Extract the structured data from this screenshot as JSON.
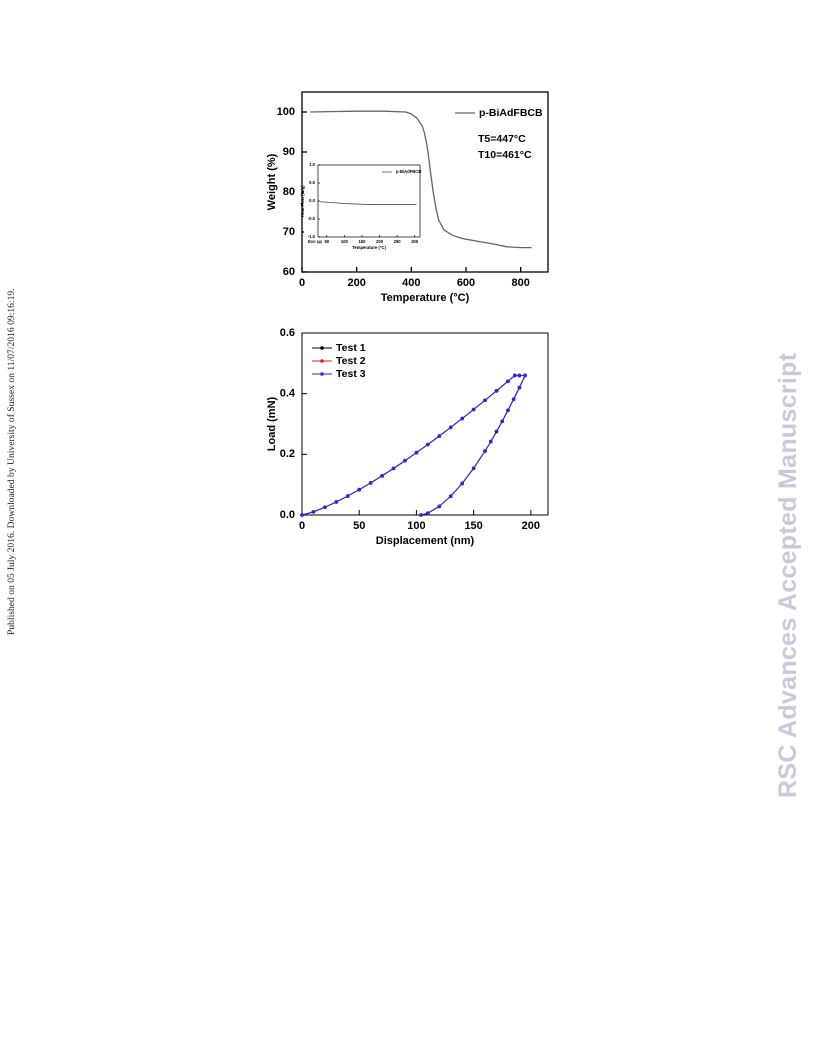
{
  "side_note": "Published on 05 July 2016. Downloaded by University of Sussex on 11/07/2016 09:16:19.",
  "watermark": "RSC Advances Accepted Manuscript",
  "chart_data": [
    {
      "type": "line",
      "xlabel": "Temperature (°C)",
      "ylabel": "Weight (%)",
      "xlim": [
        0,
        900
      ],
      "ylim": [
        60,
        105
      ],
      "xticks": [
        0,
        200,
        400,
        600,
        800
      ],
      "yticks": [
        60,
        70,
        80,
        90,
        100
      ],
      "annotations": [
        "T5=447°C",
        "T10=461°C"
      ],
      "x": [
        30,
        100,
        200,
        300,
        380,
        400,
        420,
        440,
        447,
        455,
        461,
        470,
        480,
        490,
        500,
        520,
        550,
        580,
        600,
        650,
        700,
        750,
        800,
        840
      ],
      "series": [
        {
          "name": "p-BiAdFBCB",
          "color": "#666666",
          "values": [
            100,
            100.1,
            100.2,
            100.2,
            100,
            99.5,
            98.5,
            96.5,
            95,
            92.5,
            90,
            85,
            80,
            76,
            73,
            70.5,
            69.2,
            68.5,
            68.2,
            67.6,
            67,
            66.3,
            66.1,
            66.1
          ]
        }
      ]
    },
    {
      "type": "line",
      "xlabel": "Temperature (°C)",
      "ylabel": "Heat Flow (W/g)",
      "xlim": [
        25,
        315
      ],
      "ylim": [
        -1,
        1
      ],
      "xticks": [
        50,
        100,
        150,
        200,
        250,
        300
      ],
      "yticks": [
        {
          "value": -1,
          "label": "-1.0"
        },
        -0.5,
        {
          "value": 0,
          "label": "0.0"
        },
        0.5,
        {
          "value": 1,
          "label": "1.0"
        }
      ],
      "annotations": [
        "Exo up"
      ],
      "x": [
        30,
        60,
        100,
        150,
        200,
        250,
        300,
        305
      ],
      "series": [
        {
          "name": "p-BiAdFBCB",
          "color": "#333333",
          "values": [
            -0.02,
            -0.04,
            -0.07,
            -0.09,
            -0.1,
            -0.1,
            -0.1,
            -0.09
          ]
        }
      ]
    },
    {
      "type": "line",
      "xlabel": "Displacement (nm)",
      "ylabel": "Load (mN)",
      "markers": true,
      "xlim": [
        0,
        215
      ],
      "ylim": [
        0,
        0.6
      ],
      "xticks": [
        0,
        50,
        100,
        150,
        200
      ],
      "yticks": [
        {
          "value": 0,
          "label": "0.0"
        },
        0.2,
        0.4,
        0.6
      ],
      "x": [
        0,
        10,
        20,
        30,
        40,
        50,
        60,
        70,
        80,
        90,
        100,
        110,
        120,
        130,
        140,
        150,
        160,
        170,
        180,
        186,
        190,
        195,
        190,
        185,
        180,
        175,
        170,
        165,
        160,
        150,
        140,
        130,
        120,
        110,
        104
      ],
      "series": [
        {
          "name": "Test 1",
          "color": "#000000",
          "values": [
            0,
            0.0103,
            0.0253,
            0.0429,
            0.0624,
            0.0834,
            0.1057,
            0.1291,
            0.1536,
            0.179,
            0.2053,
            0.2324,
            0.2602,
            0.2888,
            0.318,
            0.3478,
            0.3783,
            0.4093,
            0.4408,
            0.46,
            0.46,
            0.46,
            0.42,
            0.382,
            0.345,
            0.309,
            0.275,
            0.242,
            0.211,
            0.154,
            0.104,
            0.062,
            0.0285,
            0.006,
            0
          ]
        },
        {
          "name": "Test 2",
          "color": "#e02020",
          "values": [
            0,
            0.0103,
            0.0253,
            0.0429,
            0.0624,
            0.0834,
            0.1057,
            0.1291,
            0.1536,
            0.179,
            0.2053,
            0.2324,
            0.2602,
            0.2888,
            0.318,
            0.3478,
            0.3783,
            0.4093,
            0.4408,
            0.46,
            0.46,
            0.46,
            0.42,
            0.382,
            0.345,
            0.309,
            0.275,
            0.242,
            0.211,
            0.154,
            0.104,
            0.062,
            0.0285,
            0.006,
            0
          ]
        },
        {
          "name": "Test 3",
          "color": "#2a2ae0",
          "values": [
            0,
            0.0103,
            0.0253,
            0.0429,
            0.0624,
            0.0834,
            0.1057,
            0.1291,
            0.1536,
            0.179,
            0.2053,
            0.2324,
            0.2602,
            0.2888,
            0.318,
            0.3478,
            0.3783,
            0.4093,
            0.4408,
            0.46,
            0.46,
            0.46,
            0.42,
            0.382,
            0.345,
            0.309,
            0.275,
            0.242,
            0.211,
            0.154,
            0.104,
            0.062,
            0.0285,
            0.006,
            0
          ]
        }
      ]
    }
  ]
}
